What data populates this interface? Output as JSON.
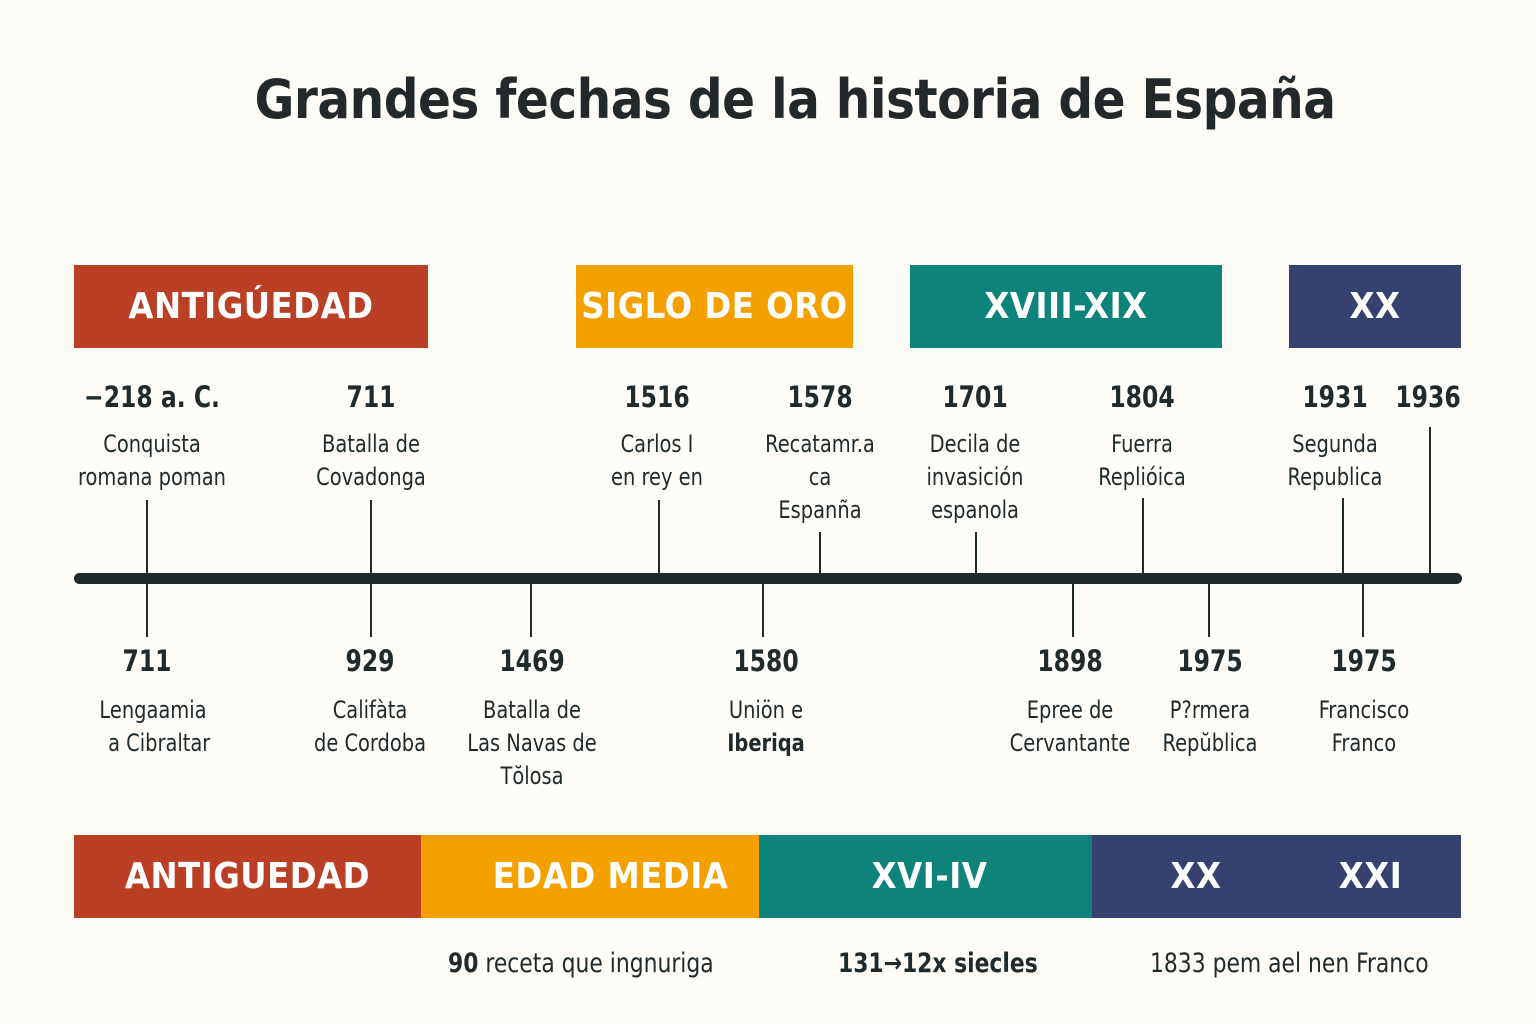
{
  "title": "Grandes fechas de la historia de España",
  "colors": {
    "red": "#bb3f25",
    "orange": "#f4a100",
    "teal": "#0e837b",
    "navy": "#35426f",
    "axis": "#1f2a2c"
  },
  "top_bands": [
    {
      "label": "ANTIGÚEDAD",
      "color": "#bb3f25"
    },
    {
      "label": "SIGLO DE ORO",
      "color": "#f4a100"
    },
    {
      "label": "XVIII-XIX",
      "color": "#0e837b"
    },
    {
      "label": "XX",
      "color": "#35426f"
    }
  ],
  "top_events": [
    {
      "year": "−218 a. C.",
      "lines": [
        "Conquista",
        "romana poman"
      ]
    },
    {
      "year": "711",
      "lines": [
        "Batalla de",
        "Covadonga"
      ]
    },
    {
      "year": "1516",
      "lines": [
        "Carlos I",
        "en rey en"
      ]
    },
    {
      "year": "1578",
      "lines": [
        "Recatamr.a",
        "ca",
        "Espanña"
      ]
    },
    {
      "year": "1701",
      "lines": [
        "Decila de",
        "invasición",
        "espanola"
      ]
    },
    {
      "year": "1804",
      "lines": [
        "Fuerra",
        "Replióica"
      ]
    },
    {
      "year": "1931",
      "lines": [
        "Segunda",
        "Republica"
      ]
    },
    {
      "year": "1936",
      "lines": []
    }
  ],
  "bottom_events": [
    {
      "year": "711",
      "lines": [
        "Lengaamia",
        "  a Cibraltar"
      ]
    },
    {
      "year": "929",
      "lines": [
        "Califàta",
        "de Cordoba"
      ]
    },
    {
      "year": "1469",
      "lines": [
        "Batalla de",
        "Las Navas de",
        "Tŏlosa"
      ]
    },
    {
      "year": "1580",
      "lines": [
        "Uniön e",
        "Iberiqa"
      ]
    },
    {
      "year": "1898",
      "lines": [
        "Epree de",
        "Cervantante"
      ]
    },
    {
      "year": "1975",
      "lines": [
        "P?rmera",
        "Repŭblica"
      ]
    },
    {
      "year": "1975",
      "lines": [
        "Francisco",
        "Franco"
      ]
    }
  ],
  "bottom_bands": [
    {
      "label": "ANTIGUEDAD",
      "color": "#bb3f25"
    },
    {
      "label": "EDAD MEDIA",
      "color": "#f4a100"
    },
    {
      "label": "XVI-IV",
      "color": "#0e837b"
    },
    {
      "label": "XX",
      "color": "#35426f"
    },
    {
      "label": "XXI",
      "color": "#35426f"
    }
  ],
  "notes": [
    {
      "bold": "90",
      "text": " receta que ingnuriga"
    },
    {
      "bold": "131→12x siecles",
      "text": ""
    },
    {
      "bold": "",
      "text": "1833 pem ael nen Franco"
    }
  ]
}
